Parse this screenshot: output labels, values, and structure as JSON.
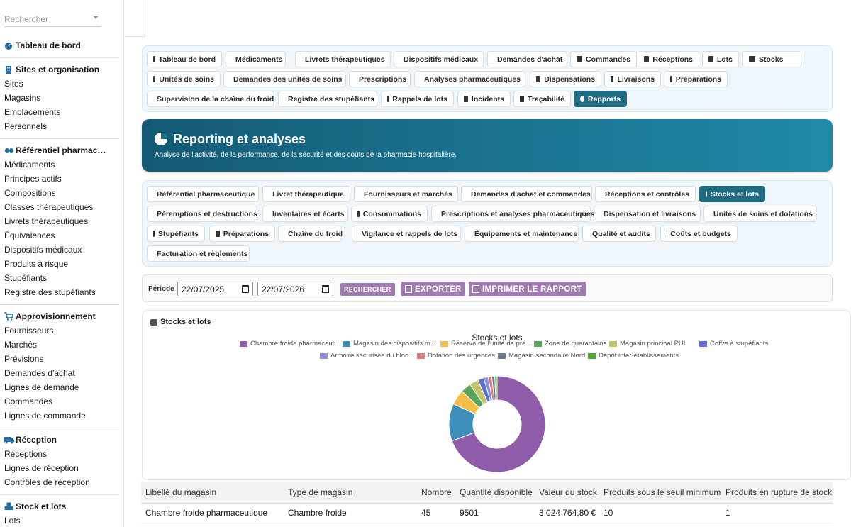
{
  "sidebar": {
    "search_placeholder": "Rechercher",
    "dashboard": "Tableau de bord",
    "sections": [
      {
        "title": "Sites et organisation",
        "items": [
          "Sites",
          "Magasins",
          "Emplacements",
          "Personnels"
        ]
      },
      {
        "title": "Référentiel pharmac…",
        "items": [
          "Médicaments",
          "Principes actifs",
          "Compositions",
          "Classes thérapeutiques",
          "Livrets thérapeutiques",
          "Équivalences",
          "Dispositifs médicaux",
          "Produits à risque",
          "Stupéfiants",
          "Registre des stupéfiants"
        ]
      },
      {
        "title": "Approvisionnement",
        "items": [
          "Fournisseurs",
          "Marchés",
          "Prévisions",
          "Demandes d'achat",
          "Lignes de demande",
          "Commandes",
          "Lignes de commande"
        ]
      },
      {
        "title": "Réception",
        "items": [
          "Réceptions",
          "Lignes de réception",
          "Contrôles de réception"
        ]
      },
      {
        "title": "Stock et lots",
        "items": [
          "Lots"
        ]
      }
    ]
  },
  "main_tabs": [
    "Tableau de bord",
    "Médicaments",
    "Livrets thérapeutiques",
    "Dispositifs médicaux",
    "Demandes d'achat",
    "Commandes",
    "Réceptions",
    "Lots",
    "Stocks",
    "Unités de soins",
    "Demandes des unités de soins",
    "Prescriptions",
    "Analyses pharmaceutiques",
    "Dispensations",
    "Livraisons",
    "Préparations",
    "Supervision de la chaîne du froid",
    "Registre des stupéfiants",
    "Rappels de lots",
    "Incidents",
    "Traçabilité",
    "Rapports"
  ],
  "banner": {
    "title": "Reporting et analyses",
    "subtitle": "Analyse de l'activité, de la performance, de la sécurité et des coûts de la pharmacie hospitalière."
  },
  "report_tabs": [
    "Référentiel pharmaceutique",
    "Livret thérapeutique",
    "Fournisseurs et marchés",
    "Demandes d'achat et commandes",
    "Réceptions et contrôles",
    "Stocks et lots",
    "Péremptions et destructions",
    "Inventaires et écarts",
    "Consommations",
    "Prescriptions et analyses pharmaceutiques",
    "Dispensation et livraisons",
    "Unités de soins et dotations",
    "Stupéfiants",
    "Préparations",
    "Chaîne du froid",
    "Vigilance et rappels de lots",
    "Équipements et maintenance",
    "Qualité et audits",
    "Coûts et budgets",
    "Facturation et règlements"
  ],
  "filters": {
    "period_label": "Période",
    "date_from": "22/07/2025",
    "date_to": "22/07/2026",
    "search_button": "RECHERCHER",
    "export_button": "EXPORTER",
    "print_button": "IMPRIMER LE RAPPORT"
  },
  "card_title": "Stocks et lots",
  "chart_data": {
    "type": "pie",
    "title": "Stocks et lots",
    "series": [
      {
        "name": "Chambre froide pharmaceut…",
        "value": 69,
        "color": "#8e5ca9"
      },
      {
        "name": "Magasin des dispositifs m…",
        "value": 12.5,
        "color": "#3d8fba"
      },
      {
        "name": "Réserve de l'unité de pré…",
        "value": 5,
        "color": "#f4be4a"
      },
      {
        "name": "Zone de quarantaine",
        "value": 3.5,
        "color": "#5aa55a"
      },
      {
        "name": "Magasin principal PUI",
        "value": 3,
        "color": "#c6c46b"
      },
      {
        "name": "Coffre à stupéfiants",
        "value": 2,
        "color": "#5b6fd8"
      },
      {
        "name": "Armoire sécurisée du bloc…",
        "value": 1.5,
        "color": "#8f8fe0"
      },
      {
        "name": "Dotation des urgences",
        "value": 1.2,
        "color": "#d97b7b"
      },
      {
        "name": "Magasin secondaire Nord",
        "value": 1.0,
        "color": "#6b7a8f"
      },
      {
        "name": "Dépôt inter-établissements",
        "value": 0.8,
        "color": "#4daa2a"
      }
    ]
  },
  "table": {
    "headers": [
      "Libellé du magasin",
      "Type de magasin",
      "Nombre",
      "Quantité disponible",
      "Valeur du stock",
      "Produits sous le seuil minimum",
      "Produits en rupture de stock"
    ],
    "rows": [
      [
        "Chambre froide pharmaceutique",
        "Chambre froide",
        "45",
        "9501",
        "3 024 764,80 €",
        "10",
        "1"
      ]
    ]
  }
}
